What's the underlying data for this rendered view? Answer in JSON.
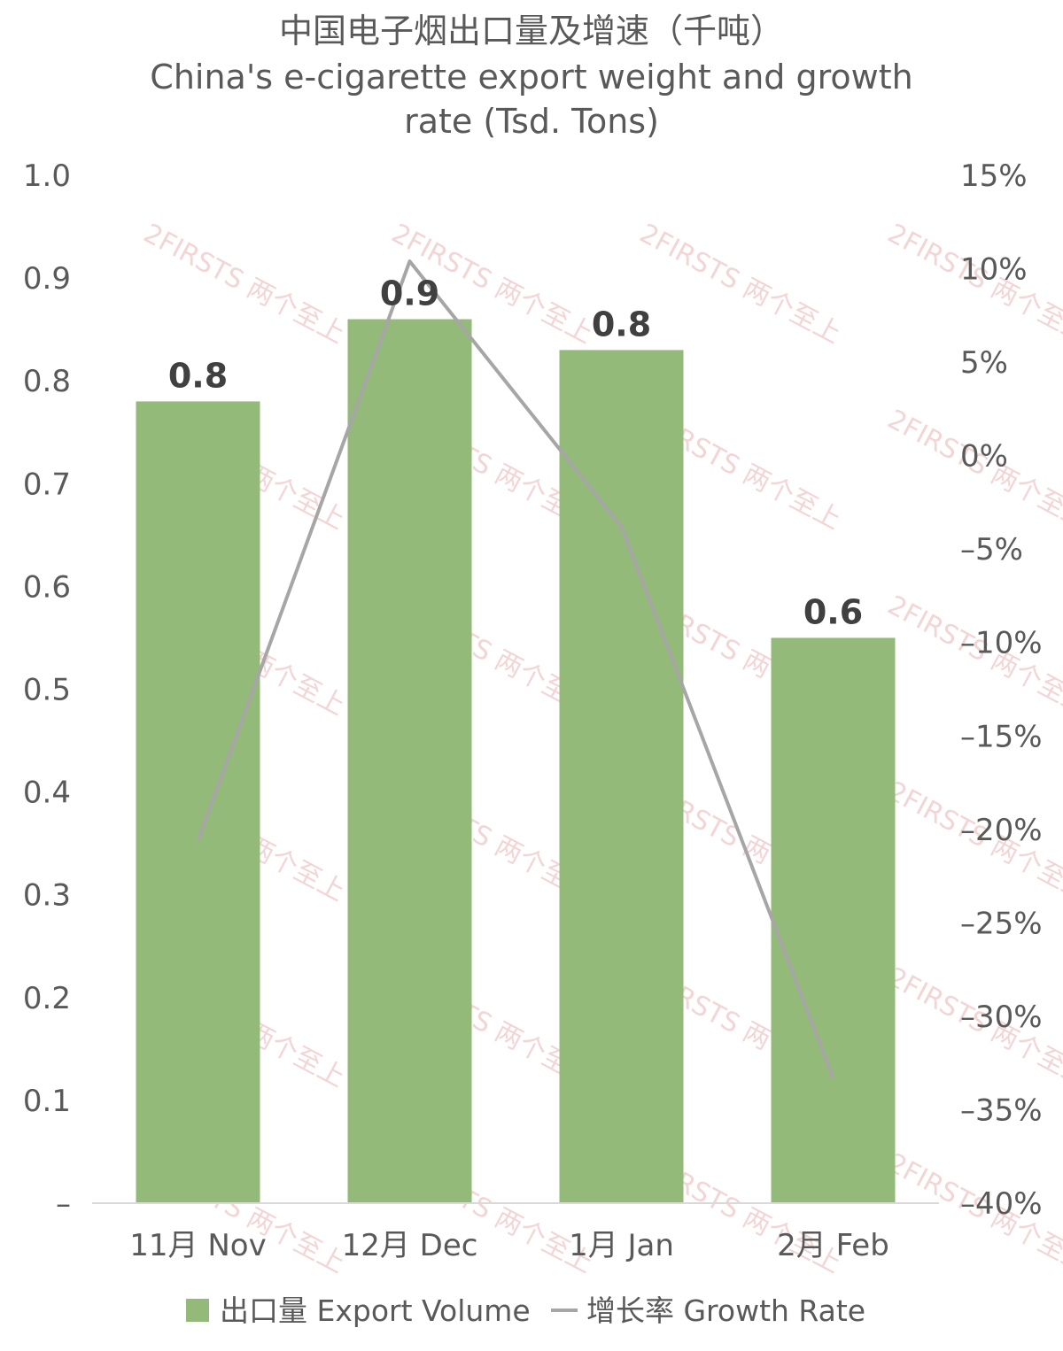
{
  "chart_data": {
    "type": "bar+line",
    "title_cn": "中国电子烟出口量及增速（千吨）",
    "title_en_line1": "China's e-cigarette export weight and growth",
    "title_en_line2": "rate (Tsd. Tons)",
    "categories": [
      "11月 Nov",
      "12月 Dec",
      "1月 Jan",
      "2月 Feb"
    ],
    "series": [
      {
        "name": "出口量 Export Volume",
        "type": "bar",
        "axis": "left",
        "color": "#93ba78",
        "values": [
          0.78,
          0.86,
          0.83,
          0.55
        ],
        "data_labels": [
          "0.8",
          "0.9",
          "0.8",
          "0.6"
        ]
      },
      {
        "name": "增长率 Growth Rate",
        "type": "line",
        "axis": "right",
        "color": "#a6a6a6",
        "values": [
          -20.6,
          10.4,
          -3.8,
          -33.3
        ]
      }
    ],
    "left_axis": {
      "ylim": [
        0,
        1.0
      ],
      "ticks": [
        0,
        0.1,
        0.2,
        0.3,
        0.4,
        0.5,
        0.6,
        0.7,
        0.8,
        0.9,
        1.0
      ],
      "tick_labels": [
        "–",
        "0.1",
        "0.2",
        "0.3",
        "0.4",
        "0.5",
        "0.6",
        "0.7",
        "0.8",
        "0.9",
        "1.0"
      ]
    },
    "right_axis": {
      "ylim": [
        -40,
        15
      ],
      "ticks": [
        15,
        10,
        5,
        0,
        -5,
        -10,
        -15,
        -20,
        -25,
        -30,
        -35,
        -40
      ],
      "tick_labels": [
        "15%",
        "10%",
        "5%",
        "0%",
        "–5%",
        "–10%",
        "–15%",
        "–20%",
        "–25%",
        "–30%",
        "–35%",
        "–40%"
      ]
    },
    "grid": false,
    "legend_position": "bottom"
  },
  "legend": {
    "bar_label": "出口量 Export Volume",
    "line_label": "增长率 Growth Rate"
  },
  "watermark": {
    "text": "2FIRSTS 两个至上"
  }
}
